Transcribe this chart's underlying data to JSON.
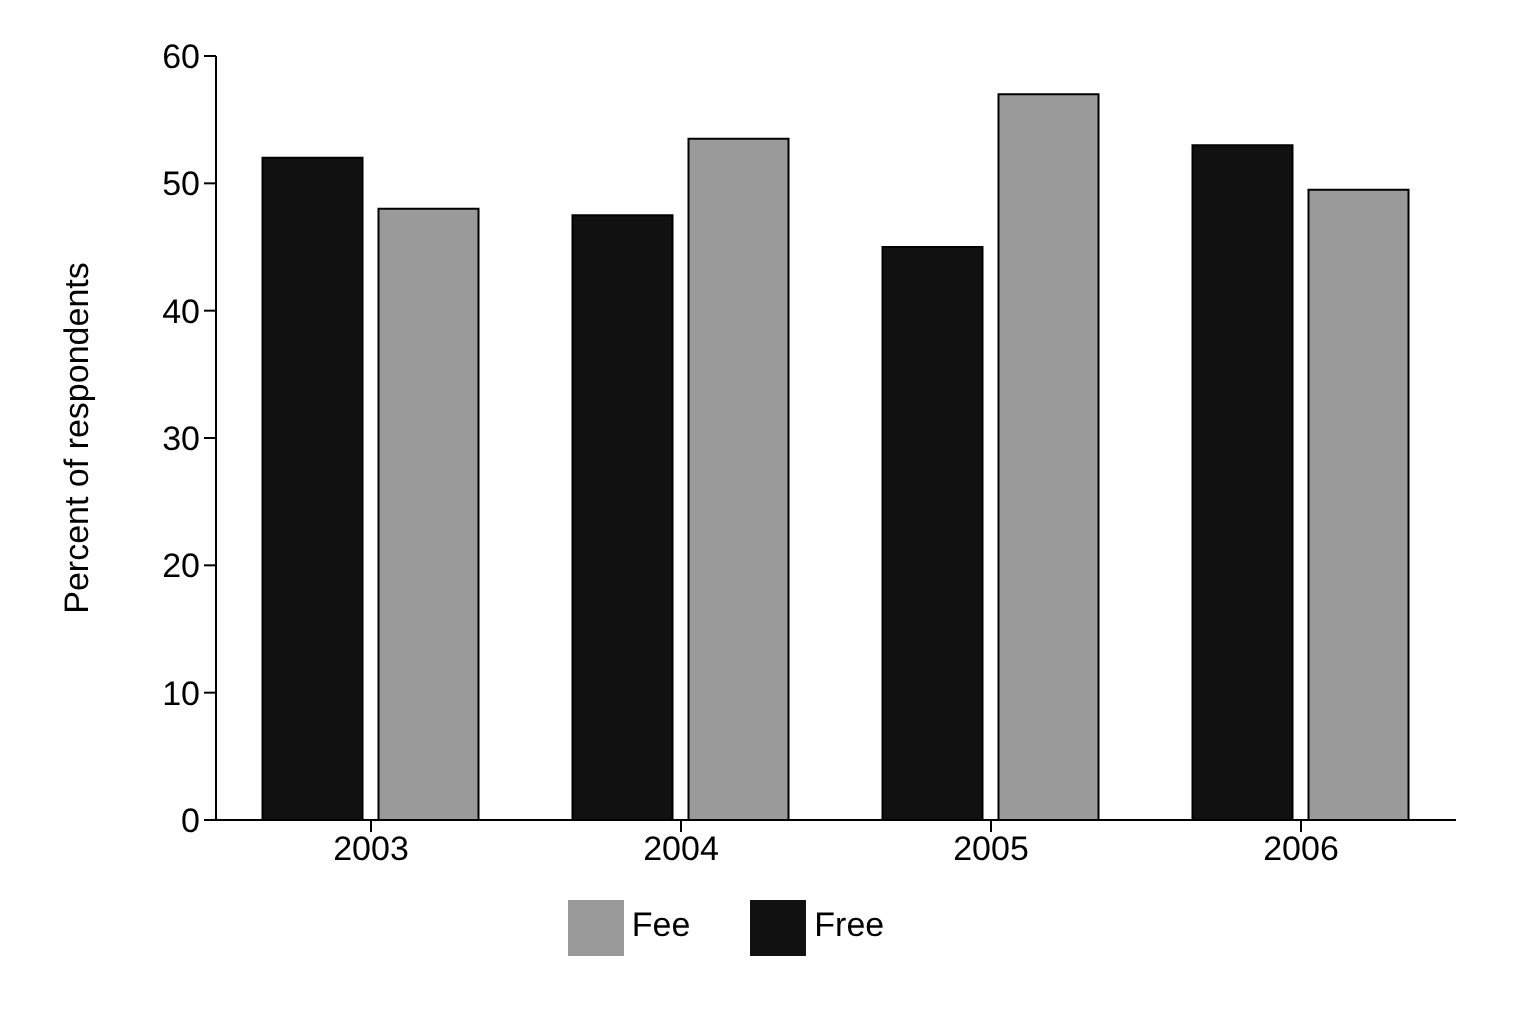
{
  "chart_data": {
    "type": "bar",
    "ylabel": "Percent of respondents",
    "categories": [
      "2003",
      "2004",
      "2005",
      "2006"
    ],
    "series": [
      {
        "name": "Free",
        "color": "#111111",
        "values": [
          52,
          47.5,
          45,
          53
        ]
      },
      {
        "name": "Fee",
        "color": "#9a9a9a",
        "values": [
          48,
          53.5,
          57,
          49.5
        ]
      }
    ],
    "ylim": [
      0,
      60
    ],
    "yticks": [
      0,
      10,
      20,
      30,
      40,
      50,
      60
    ],
    "grid": false,
    "legend": "bottom"
  }
}
